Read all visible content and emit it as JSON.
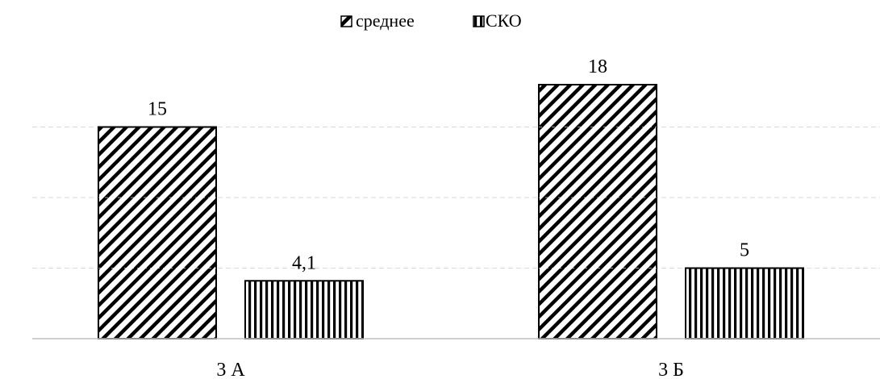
{
  "chart_data": {
    "type": "bar",
    "categories": [
      "3 А",
      "3 Б"
    ],
    "series": [
      {
        "name": "среднее",
        "values": [
          15,
          18
        ],
        "labels": [
          "15",
          "18"
        ]
      },
      {
        "name": "СКО",
        "values": [
          4.1,
          5
        ],
        "labels": [
          "4,1",
          "5"
        ]
      }
    ],
    "ylim": [
      0,
      20
    ],
    "grid": true,
    "legend": "top-center",
    "colors": {
      "bar_fill": "#ffffff",
      "pattern": "#000000",
      "axis": "#bfbfbf",
      "grid": "#d9d9d9"
    }
  }
}
